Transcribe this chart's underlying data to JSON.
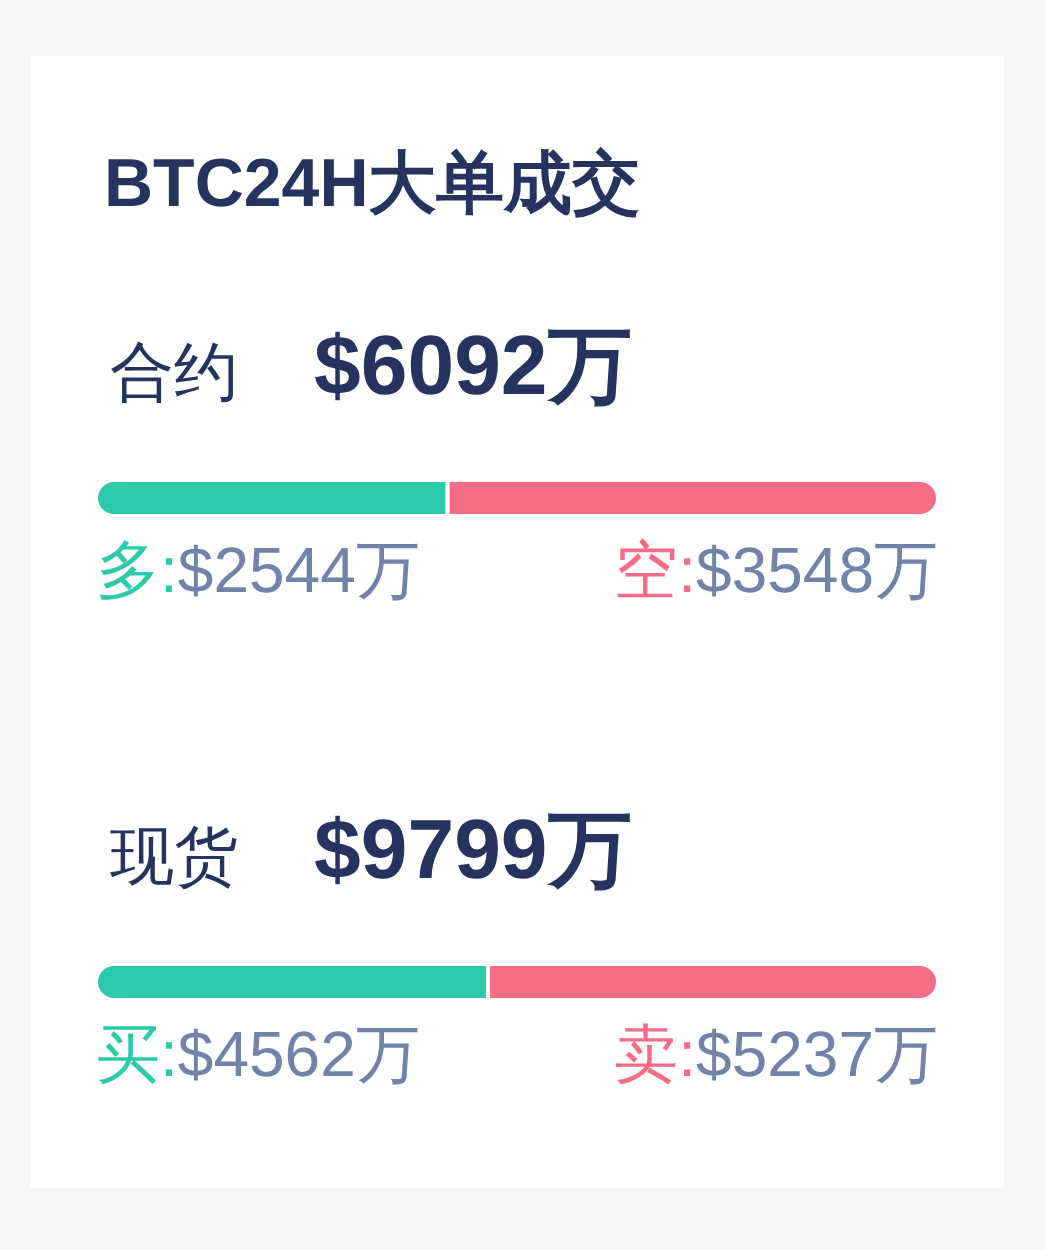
{
  "chart_data": [
    {
      "type": "bar",
      "orientation": "horizontal",
      "stacked": true,
      "title": "BTC24H大单成交",
      "categories": [
        "合约"
      ],
      "totals": [
        "$6092万"
      ],
      "series": [
        {
          "name": "多:",
          "color": "#2bcbaa",
          "values": [
            2544
          ],
          "value_labels": [
            "$2544万"
          ]
        },
        {
          "name": "空:",
          "color": "#f56c86",
          "values": [
            3548
          ],
          "value_labels": [
            "$3548万"
          ]
        }
      ]
    },
    {
      "type": "bar",
      "orientation": "horizontal",
      "stacked": true,
      "categories": [
        "现货"
      ],
      "totals": [
        "$9799万"
      ],
      "series": [
        {
          "name": "买:",
          "color": "#2bcbaa",
          "values": [
            4562
          ],
          "value_labels": [
            "$4562万"
          ]
        },
        {
          "name": "卖:",
          "color": "#f56c86",
          "values": [
            5237
          ],
          "value_labels": [
            "$5237万"
          ]
        }
      ]
    }
  ]
}
